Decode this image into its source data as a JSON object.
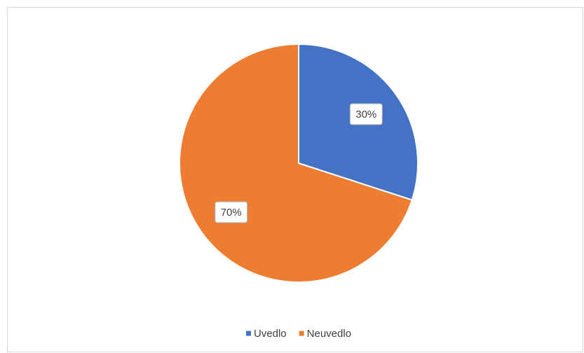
{
  "chart_data": {
    "type": "pie",
    "categories": [
      "Uvedlo",
      "Neuvedlo"
    ],
    "values": [
      30,
      70
    ],
    "value_labels": [
      "30%",
      "70%"
    ],
    "colors": [
      "#4472c4",
      "#ed7d31"
    ],
    "legend": "bottom"
  }
}
